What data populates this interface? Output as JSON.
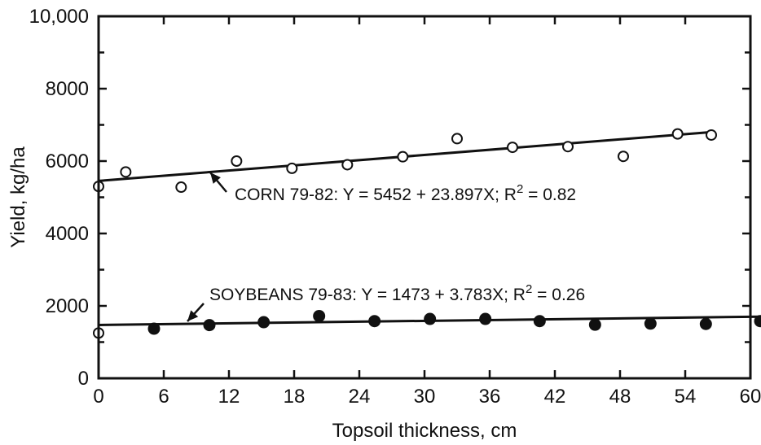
{
  "chart_data": {
    "type": "scatter",
    "xlabel": "Topsoil thickness, cm",
    "ylabel": "Yield, kg/ha",
    "xlim": [
      0,
      60
    ],
    "ylim": [
      0,
      10000
    ],
    "x_ticks": [
      0,
      6,
      12,
      18,
      24,
      30,
      36,
      42,
      48,
      54,
      60
    ],
    "x_tick_labels": [
      "0",
      "6",
      "12",
      "18",
      "24",
      "30",
      "36",
      "42",
      "48",
      "54",
      "60"
    ],
    "y_ticks": [
      0,
      2000,
      4000,
      6000,
      8000,
      10000
    ],
    "y_tick_labels": [
      "0",
      "2000",
      "4000",
      "6000",
      "8000",
      "10,000"
    ],
    "grid": false,
    "legend": "none",
    "series": [
      {
        "marker": "open-circle",
        "points": [
          {
            "x": 0,
            "y": 5300
          },
          {
            "x": 2.5,
            "y": 5700
          },
          {
            "x": 7.6,
            "y": 5280
          },
          {
            "x": 12.7,
            "y": 6000
          },
          {
            "x": 17.8,
            "y": 5800
          },
          {
            "x": 22.9,
            "y": 5900
          },
          {
            "x": 28.0,
            "y": 6120
          },
          {
            "x": 33.0,
            "y": 6620
          },
          {
            "x": 38.1,
            "y": 6380
          },
          {
            "x": 43.2,
            "y": 6400
          },
          {
            "x": 48.3,
            "y": 6130
          },
          {
            "x": 53.3,
            "y": 6750
          },
          {
            "x": 56.4,
            "y": 6720
          }
        ],
        "fit": {
          "intercept": 5452,
          "slope": 23.897,
          "x_range": [
            0,
            56.4
          ]
        }
      },
      {
        "marker": "filled-circle",
        "extra_open_points": [
          {
            "x": 0,
            "y": 1250
          }
        ],
        "points": [
          {
            "x": 5.1,
            "y": 1370
          },
          {
            "x": 10.2,
            "y": 1470
          },
          {
            "x": 15.2,
            "y": 1550
          },
          {
            "x": 20.3,
            "y": 1720
          },
          {
            "x": 25.4,
            "y": 1580
          },
          {
            "x": 30.5,
            "y": 1640
          },
          {
            "x": 35.6,
            "y": 1640
          },
          {
            "x": 40.6,
            "y": 1580
          },
          {
            "x": 45.7,
            "y": 1480
          },
          {
            "x": 50.8,
            "y": 1510
          },
          {
            "x": 55.9,
            "y": 1500
          },
          {
            "x": 60.9,
            "y": 1580
          }
        ],
        "fit": {
          "intercept": 1473,
          "slope": 3.783,
          "x_range": [
            0,
            60.9
          ]
        }
      }
    ],
    "annotations": [
      {
        "pre": "CORN 79-82: Y = 5452 + 23.897X; R",
        "sup": "2",
        "post": " = 0.82"
      },
      {
        "pre": "SOYBEANS 79-83: Y = 1473 + 3.783X; R",
        "sup": "2",
        "post": " = 0.26"
      }
    ]
  }
}
